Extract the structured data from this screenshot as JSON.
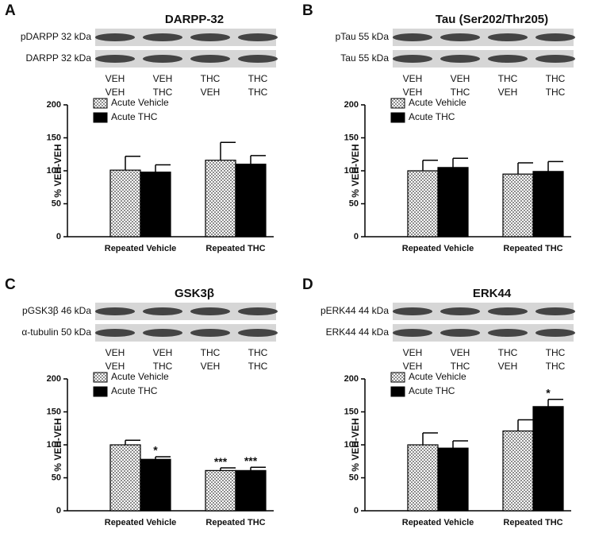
{
  "chart_data": [
    {
      "type": "bar",
      "panel": "A",
      "title": "DARPP-32",
      "blots": [
        "pDARPP 32 kDa",
        "DARPP 32 kDa"
      ],
      "lanes": [
        [
          "VEH",
          "VEH"
        ],
        [
          "VEH",
          "THC"
        ],
        [
          "THC",
          "VEH"
        ],
        [
          "THC",
          "THC"
        ]
      ],
      "y_label": "% VEH-VEH",
      "categories": [
        "Repeated Vehicle",
        "Repeated THC"
      ],
      "series": [
        {
          "name": "Acute Vehicle",
          "color": "#8c8c8c",
          "hatch": true,
          "values": [
            101,
            116
          ],
          "errors": [
            21,
            27
          ],
          "labels": [
            null,
            null
          ]
        },
        {
          "name": "Acute THC",
          "color": "#000000",
          "hatch": false,
          "values": [
            98,
            110
          ],
          "errors": [
            11,
            13
          ],
          "labels": [
            null,
            null
          ]
        }
      ],
      "ylim": [
        0,
        200
      ],
      "yticks": [
        0,
        50,
        100,
        150,
        200
      ]
    },
    {
      "type": "bar",
      "panel": "B",
      "title": "Tau (Ser202/Thr205)",
      "blots": [
        "pTau 55 kDa",
        "Tau 55 kDa"
      ],
      "lanes": [
        [
          "VEH",
          "VEH"
        ],
        [
          "VEH",
          "THC"
        ],
        [
          "THC",
          "VEH"
        ],
        [
          "THC",
          "THC"
        ]
      ],
      "y_label": "% VEH-VEH",
      "categories": [
        "Repeated Vehicle",
        "Repeated THC"
      ],
      "series": [
        {
          "name": "Acute Vehicle",
          "color": "#8c8c8c",
          "hatch": true,
          "values": [
            100,
            95
          ],
          "errors": [
            16,
            17
          ],
          "labels": [
            null,
            null
          ]
        },
        {
          "name": "Acute THC",
          "color": "#000000",
          "hatch": false,
          "values": [
            105,
            99
          ],
          "errors": [
            14,
            15
          ],
          "labels": [
            null,
            null
          ]
        }
      ],
      "ylim": [
        0,
        200
      ],
      "yticks": [
        0,
        50,
        100,
        150,
        200
      ]
    },
    {
      "type": "bar",
      "panel": "C",
      "title": "GSK3β",
      "blots": [
        "pGSK3β 46 kDa",
        "α-tubulin 50 kDa"
      ],
      "lanes": [
        [
          "VEH",
          "VEH"
        ],
        [
          "VEH",
          "THC"
        ],
        [
          "THC",
          "VEH"
        ],
        [
          "THC",
          "THC"
        ]
      ],
      "y_label": "% VEH-VEH",
      "categories": [
        "Repeated Vehicle",
        "Repeated THC"
      ],
      "series": [
        {
          "name": "Acute Vehicle",
          "color": "#8c8c8c",
          "hatch": true,
          "values": [
            100,
            61
          ],
          "errors": [
            7,
            4
          ],
          "labels": [
            null,
            "***"
          ]
        },
        {
          "name": "Acute THC",
          "color": "#000000",
          "hatch": false,
          "values": [
            78,
            61
          ],
          "errors": [
            4,
            5
          ],
          "labels": [
            "*",
            "***"
          ]
        }
      ],
      "ylim": [
        0,
        200
      ],
      "yticks": [
        0,
        50,
        100,
        150,
        200
      ]
    },
    {
      "type": "bar",
      "panel": "D",
      "title": "ERK44",
      "blots": [
        "pERK44 44 kDa",
        "ERK44 44 kDa"
      ],
      "lanes": [
        [
          "VEH",
          "VEH"
        ],
        [
          "VEH",
          "THC"
        ],
        [
          "THC",
          "VEH"
        ],
        [
          "THC",
          "THC"
        ]
      ],
      "y_label": "% VEH-VEH",
      "categories": [
        "Repeated Vehicle",
        "Repeated THC"
      ],
      "series": [
        {
          "name": "Acute Vehicle",
          "color": "#8c8c8c",
          "hatch": true,
          "values": [
            100,
            121
          ],
          "errors": [
            18,
            17
          ],
          "labels": [
            null,
            null
          ]
        },
        {
          "name": "Acute THC",
          "color": "#000000",
          "hatch": false,
          "values": [
            95,
            158
          ],
          "errors": [
            11,
            11
          ],
          "labels": [
            null,
            "*"
          ]
        }
      ],
      "ylim": [
        0,
        200
      ],
      "yticks": [
        0,
        50,
        100,
        150,
        200
      ]
    }
  ]
}
